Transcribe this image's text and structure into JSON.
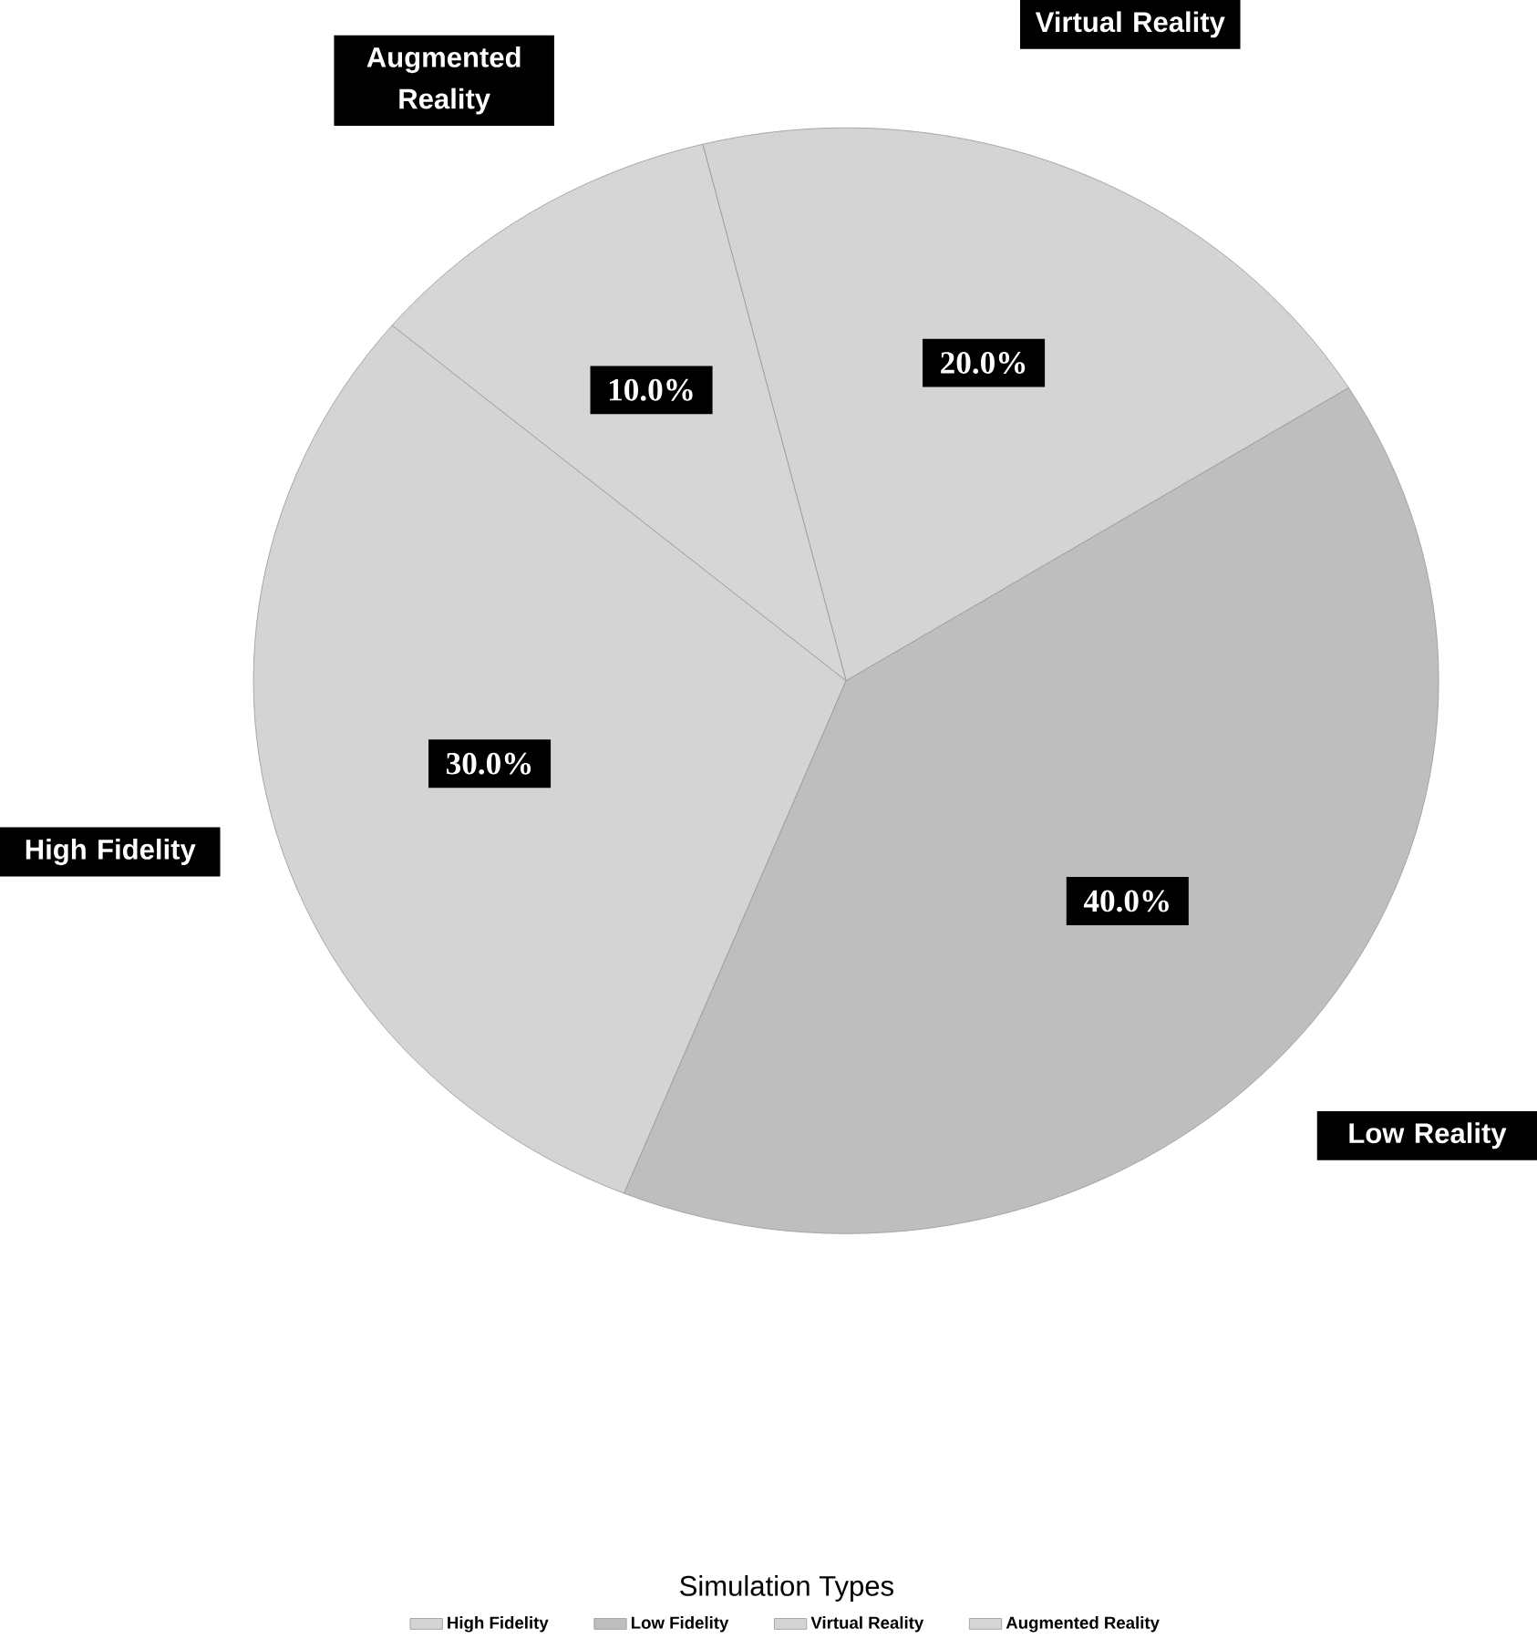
{
  "chart_data": {
    "type": "pie",
    "legend_title": "Simulation Types",
    "categories": [
      "High Fidelity",
      "Low Fidelity",
      "Virtual Reality",
      "Augmented Reality"
    ],
    "values": [
      30,
      40,
      20,
      10
    ],
    "colors": [
      "#d4d4d4",
      "#bebebe",
      "#d4d4d4",
      "#d6d6d6"
    ],
    "value_labels": [
      "30.0%",
      "40.0%",
      "20.0%",
      "10.0%"
    ],
    "annotations": [
      "High Fidelity",
      "Low Reality",
      "Virtual Reality",
      "Augmented Reality"
    ],
    "legend": "bottom"
  }
}
